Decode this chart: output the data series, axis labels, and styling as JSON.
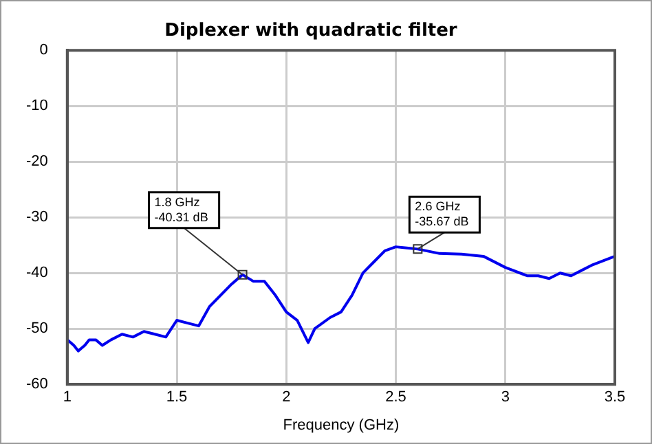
{
  "chart_data": {
    "type": "line",
    "title": "Diplexer with quadratic filter",
    "xlabel": "Frequency (GHz)",
    "xlim": [
      1,
      3.5
    ],
    "xticks": [
      1,
      1.5,
      2,
      2.5,
      3,
      3.5
    ],
    "ylim": [
      -60,
      0
    ],
    "yticks": [
      -60,
      -50,
      -40,
      -30,
      -20,
      -10,
      0
    ],
    "grid": true,
    "legend": false,
    "marker": "none",
    "line_style": "solid",
    "annotations": [
      {
        "text": "1.8 GHz\n-40.31 dB",
        "x": 1.8,
        "y": -40.31
      },
      {
        "text": "2.6 GHz\n-35.67 dB",
        "x": 2.6,
        "y": -35.67
      }
    ],
    "series": [
      {
        "color": "#0000ee",
        "x": [
          1.0,
          1.03,
          1.05,
          1.08,
          1.1,
          1.13,
          1.16,
          1.2,
          1.25,
          1.3,
          1.35,
          1.4,
          1.45,
          1.5,
          1.55,
          1.6,
          1.65,
          1.7,
          1.75,
          1.8,
          1.85,
          1.9,
          1.95,
          2.0,
          2.05,
          2.1,
          2.13,
          2.2,
          2.25,
          2.3,
          2.35,
          2.4,
          2.45,
          2.5,
          2.55,
          2.6,
          2.7,
          2.8,
          2.9,
          3.0,
          3.1,
          3.15,
          3.2,
          3.25,
          3.3,
          3.35,
          3.4,
          3.5
        ],
        "values": [
          -52,
          -53,
          -54,
          -53,
          -52,
          -52,
          -53,
          -52,
          -51,
          -51.5,
          -50.5,
          -51,
          -51.5,
          -48.5,
          -49,
          -49.5,
          -46,
          -44,
          -42,
          -40.3,
          -41.5,
          -41.5,
          -44,
          -47,
          -48.5,
          -52.5,
          -50,
          -48,
          -47,
          -44,
          -40,
          -38,
          -36,
          -35.3,
          -35.5,
          -35.7,
          -36.5,
          -36.6,
          -37,
          -39,
          -40.5,
          -40.5,
          -41,
          -40,
          -40.5,
          -39.5,
          -38.5,
          -37
        ]
      }
    ]
  }
}
